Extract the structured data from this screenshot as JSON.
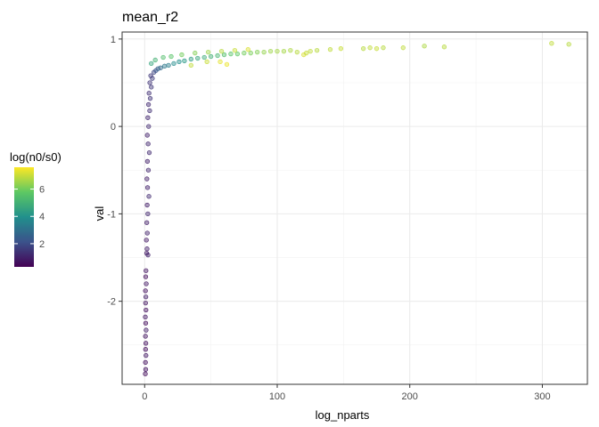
{
  "chart_data": {
    "type": "scatter",
    "title": "mean_r2",
    "xlabel": "log_nparts",
    "ylabel": "val",
    "xlim": [
      -17,
      334
    ],
    "ylim": [
      -2.95,
      1.08
    ],
    "x_ticks": [
      0,
      100,
      200,
      300
    ],
    "x_tick_labels": [
      "0",
      "100",
      "200",
      "300"
    ],
    "x_minor_ticks": [
      50,
      150,
      250
    ],
    "y_ticks": [
      1,
      0,
      -1,
      -2
    ],
    "y_tick_labels": [
      "1",
      "0",
      "-1",
      "-2"
    ],
    "y_minor_ticks": [
      0.5,
      -0.5,
      -1.5,
      -2.5
    ],
    "grid": true,
    "theme": "bw",
    "point_opacity": 0.45,
    "legend": {
      "title": "log(n0/s0)",
      "position": "left",
      "min": 0.3,
      "max": 7.6,
      "breaks": [
        2,
        4,
        6
      ],
      "break_labels": [
        "2",
        "4",
        "6"
      ],
      "colormap": [
        "#440154",
        "#3b528b",
        "#21908c",
        "#5dc863",
        "#fde725"
      ]
    },
    "points": [
      [
        0.5,
        -2.83,
        0.5
      ],
      [
        0.8,
        -2.78,
        0.7
      ],
      [
        0.6,
        -2.7,
        0.6
      ],
      [
        1.0,
        -2.62,
        0.8
      ],
      [
        0.7,
        -2.55,
        0.5
      ],
      [
        0.9,
        -2.48,
        0.6
      ],
      [
        0.6,
        -2.4,
        0.7
      ],
      [
        1.1,
        -2.33,
        0.9
      ],
      [
        0.8,
        -2.25,
        0.5
      ],
      [
        0.5,
        -2.18,
        0.8
      ],
      [
        1.0,
        -2.1,
        0.6
      ],
      [
        0.7,
        -2.02,
        0.7
      ],
      [
        0.9,
        -1.95,
        0.9
      ],
      [
        0.6,
        -1.88,
        0.6
      ],
      [
        1.2,
        -1.8,
        0.8
      ],
      [
        0.8,
        -1.72,
        0.5
      ],
      [
        1.0,
        -1.65,
        0.7
      ],
      [
        1.5,
        -1.45,
        0.8
      ],
      [
        1.8,
        -1.4,
        0.9
      ],
      [
        2.5,
        -1.47,
        1.0
      ],
      [
        1.3,
        -1.3,
        0.8
      ],
      [
        2.0,
        -1.22,
        1.0
      ],
      [
        1.6,
        -1.1,
        0.9
      ],
      [
        2.4,
        -1.0,
        1.1
      ],
      [
        1.9,
        -0.9,
        0.9
      ],
      [
        3.2,
        -0.8,
        1.2
      ],
      [
        2.2,
        -0.7,
        1.0
      ],
      [
        1.7,
        -0.6,
        0.9
      ],
      [
        2.8,
        -0.5,
        1.1
      ],
      [
        2.1,
        -0.4,
        1.0
      ],
      [
        3.5,
        -0.3,
        1.2
      ],
      [
        2.6,
        -0.2,
        1.1
      ],
      [
        2.0,
        -0.1,
        1.0
      ],
      [
        3.0,
        0.0,
        1.2
      ],
      [
        2.4,
        0.1,
        1.1
      ],
      [
        3.8,
        0.18,
        1.3
      ],
      [
        2.9,
        0.25,
        1.2
      ],
      [
        4.2,
        0.32,
        1.4
      ],
      [
        3.3,
        0.38,
        1.3
      ],
      [
        5.0,
        0.45,
        1.5
      ],
      [
        3.9,
        0.5,
        1.4
      ],
      [
        5.8,
        0.55,
        1.6
      ],
      [
        4.6,
        0.58,
        1.5
      ],
      [
        7.0,
        0.62,
        1.8
      ],
      [
        8.5,
        0.64,
        2.2
      ],
      [
        10.0,
        0.66,
        2.5
      ],
      [
        12.0,
        0.67,
        2.8
      ],
      [
        15.0,
        0.69,
        3.2
      ],
      [
        18.0,
        0.7,
        3.4
      ],
      [
        22.0,
        0.72,
        3.8
      ],
      [
        26.0,
        0.74,
        3.9
      ],
      [
        30.0,
        0.75,
        4.2
      ],
      [
        35.0,
        0.77,
        4.4
      ],
      [
        40.0,
        0.78,
        4.6
      ],
      [
        45.0,
        0.79,
        4.8
      ],
      [
        50.0,
        0.8,
        5.0
      ],
      [
        55.0,
        0.81,
        5.2
      ],
      [
        60.0,
        0.82,
        5.4
      ],
      [
        65.0,
        0.83,
        5.6
      ],
      [
        70.0,
        0.83,
        5.8
      ],
      [
        75.0,
        0.84,
        6.0
      ],
      [
        80.0,
        0.84,
        6.1
      ],
      [
        85.0,
        0.85,
        6.2
      ],
      [
        90.0,
        0.85,
        6.4
      ],
      [
        95.0,
        0.86,
        6.5
      ],
      [
        100.0,
        0.86,
        6.6
      ],
      [
        105.0,
        0.86,
        6.6
      ],
      [
        110.0,
        0.87,
        6.7
      ],
      [
        115.0,
        0.85,
        6.8
      ],
      [
        120.0,
        0.82,
        7.2
      ],
      [
        122.0,
        0.84,
        7.0
      ],
      [
        125.0,
        0.86,
        6.9
      ],
      [
        130.0,
        0.87,
        6.8
      ],
      [
        140.0,
        0.88,
        6.9
      ],
      [
        148.0,
        0.89,
        7.0
      ],
      [
        165.0,
        0.89,
        6.8
      ],
      [
        170.0,
        0.9,
        6.9
      ],
      [
        175.0,
        0.89,
        7.0
      ],
      [
        180.0,
        0.9,
        6.8
      ],
      [
        195.0,
        0.9,
        6.9
      ],
      [
        211.0,
        0.92,
        6.7
      ],
      [
        226.0,
        0.91,
        6.8
      ],
      [
        307.0,
        0.95,
        6.9
      ],
      [
        320.0,
        0.94,
        6.8
      ],
      [
        5.0,
        0.72,
        4.6
      ],
      [
        8.0,
        0.76,
        5.0
      ],
      [
        14.0,
        0.79,
        5.4
      ],
      [
        20.0,
        0.8,
        5.6
      ],
      [
        28.0,
        0.82,
        6.0
      ],
      [
        38.0,
        0.84,
        6.2
      ],
      [
        48.0,
        0.85,
        6.5
      ],
      [
        58.0,
        0.86,
        6.8
      ],
      [
        68.0,
        0.87,
        7.0
      ],
      [
        78.0,
        0.88,
        7.2
      ],
      [
        62.0,
        0.71,
        7.4
      ],
      [
        57.0,
        0.74,
        7.3
      ],
      [
        47.0,
        0.74,
        7.0
      ],
      [
        35.0,
        0.7,
        6.9
      ]
    ]
  }
}
